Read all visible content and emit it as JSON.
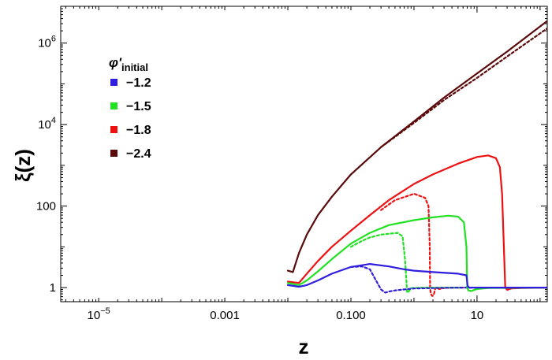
{
  "chart_data": {
    "type": "line",
    "xscale": "log",
    "yscale": "log",
    "xlim": [
      2.5e-06,
      130
    ],
    "ylim": [
      0.45,
      8000000
    ],
    "xlabel": "z",
    "ylabel": "ξ(z)",
    "x_ticks": [
      {
        "value": 1e-05,
        "base": "10",
        "exp": "−5"
      },
      {
        "value": 0.001,
        "label": "0.001"
      },
      {
        "value": 0.1,
        "label": "0.100"
      },
      {
        "value": 10,
        "label": "10"
      }
    ],
    "y_ticks": [
      {
        "value": 1,
        "label": "1"
      },
      {
        "value": 100,
        "label": "100"
      },
      {
        "value": 10000,
        "base": "10",
        "exp": "4"
      },
      {
        "value": 1000000,
        "base": "10",
        "exp": "6"
      }
    ],
    "legend": {
      "title_main": "φ'",
      "title_sub": "initial",
      "position": "upper-left",
      "entries": [
        {
          "label": "−1.2",
          "color": "#2f1de0"
        },
        {
          "label": "−1.5",
          "color": "#22e022"
        },
        {
          "label": "−1.8",
          "color": "#ee1111"
        },
        {
          "label": "−2.4",
          "color": "#5a0a0a"
        }
      ]
    },
    "series": [
      {
        "name": "−2.4 solid",
        "color": "#5a0a0a",
        "style": "solid",
        "x": [
          0.01,
          0.012,
          0.015,
          0.02,
          0.03,
          0.05,
          0.1,
          0.3,
          1,
          3,
          10,
          30,
          130
        ],
        "y": [
          2.6,
          2.4,
          7,
          20,
          60,
          170,
          600,
          2800,
          12000,
          46000,
          180000,
          620000,
          3500000
        ]
      },
      {
        "name": "−2.4 dotted",
        "color": "#5a0a0a",
        "style": "dotted",
        "x": [
          0.3,
          1,
          3,
          10,
          30,
          130
        ],
        "y": [
          2800,
          11000,
          40000,
          140000,
          470000,
          2300000
        ]
      },
      {
        "name": "−1.8 solid",
        "color": "#ee1111",
        "style": "solid",
        "x": [
          0.01,
          0.015,
          0.02,
          0.03,
          0.05,
          0.1,
          0.2,
          0.4,
          1,
          2,
          5,
          10,
          15,
          20,
          23,
          25,
          28,
          30,
          35,
          50,
          130
        ],
        "y": [
          1.4,
          1.3,
          2.2,
          4.5,
          10,
          25,
          60,
          140,
          350,
          600,
          1100,
          1600,
          1750,
          1500,
          900,
          200,
          1,
          0.88,
          0.95,
          0.97,
          1
        ]
      },
      {
        "name": "−1.8 dotted",
        "color": "#ee1111",
        "style": "dotted",
        "x": [
          0.3,
          0.5,
          1,
          1.5,
          1.7,
          1.78,
          1.8,
          1.85,
          1.95,
          2.05,
          2.2,
          2.5,
          3,
          4,
          6
        ],
        "y": [
          80,
          140,
          200,
          160,
          100,
          10,
          1,
          0.7,
          0.62,
          0.65,
          1,
          0.92,
          0.97,
          1,
          1
        ]
      },
      {
        "name": "−1.5 solid",
        "color": "#22e022",
        "style": "solid",
        "x": [
          0.01,
          0.015,
          0.02,
          0.03,
          0.05,
          0.1,
          0.2,
          0.4,
          1,
          2,
          3.5,
          5,
          6.2,
          6.8,
          7,
          7.3,
          8,
          10,
          15,
          130
        ],
        "y": [
          1.3,
          1.15,
          1.5,
          2.5,
          5,
          12,
          22,
          34,
          45,
          53,
          58,
          55,
          40,
          10,
          1,
          0.85,
          0.82,
          0.92,
          0.97,
          1
        ]
      },
      {
        "name": "−1.5 dotted",
        "color": "#22e022",
        "style": "dotted",
        "x": [
          0.1,
          0.15,
          0.2,
          0.3,
          0.55,
          0.66,
          0.72,
          0.78,
          0.82,
          0.9,
          1.5,
          6
        ],
        "y": [
          10,
          14,
          17,
          20,
          22,
          18,
          5,
          0.75,
          0.8,
          0.97,
          1,
          1
        ]
      },
      {
        "name": "−1.2 solid",
        "color": "#2f1de0",
        "style": "solid",
        "x": [
          0.01,
          0.015,
          0.02,
          0.03,
          0.05,
          0.1,
          0.2,
          0.4,
          0.7,
          1,
          2,
          5,
          6.8,
          7.1,
          7.5,
          10,
          20,
          130
        ],
        "y": [
          1.15,
          1.05,
          1.15,
          1.5,
          2.2,
          3.2,
          3.8,
          3.3,
          2.8,
          2.6,
          2.4,
          2.2,
          2,
          1.1,
          1,
          1,
          1,
          1
        ]
      },
      {
        "name": "−1.2 dotted",
        "color": "#2f1de0",
        "style": "dotted",
        "x": [
          0.1,
          0.15,
          0.2,
          0.25,
          0.3,
          0.35,
          0.4,
          0.5,
          0.7,
          1,
          2,
          5,
          10
        ],
        "y": [
          3.2,
          3.3,
          2.8,
          1.5,
          0.9,
          0.75,
          0.8,
          0.85,
          0.9,
          0.95,
          0.97,
          1,
          1
        ]
      }
    ]
  }
}
